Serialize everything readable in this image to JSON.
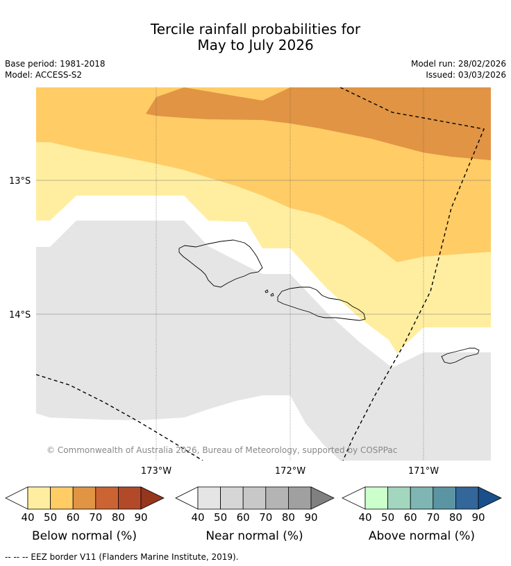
{
  "header": {
    "title_line1": "Tercile rainfall probabilities for",
    "title_line2": "May to July 2026",
    "base_period": "Base period: 1981-2018",
    "model": "Model: ACCESS-S2",
    "model_run": "Model run: 28/02/2026",
    "issued": "Issued: 03/03/2026"
  },
  "map": {
    "lat_labels": [
      "13°S",
      "14°S"
    ],
    "lon_labels": [
      "173°W",
      "172°W",
      "171°W"
    ],
    "copyright": "© Commonwealth of Australia 2026, Bureau of Meteorology, supported by COSPPac"
  },
  "colorbars": [
    {
      "label": "Below normal (%)",
      "ticks": [
        "40",
        "50",
        "60",
        "70",
        "80",
        "90"
      ],
      "colors": [
        "#ffffff",
        "#ffeea0",
        "#ffcc66",
        "#e09444",
        "#cc6333",
        "#b24a2a",
        "#96361d"
      ]
    },
    {
      "label": "Near normal (%)",
      "ticks": [
        "40",
        "50",
        "60",
        "70",
        "80",
        "90"
      ],
      "colors": [
        "#ffffff",
        "#e5e5e5",
        "#d6d6d6",
        "#c8c8c8",
        "#b4b4b4",
        "#a0a0a0",
        "#808080"
      ]
    },
    {
      "label": "Above normal (%)",
      "ticks": [
        "40",
        "50",
        "60",
        "70",
        "80",
        "90"
      ],
      "colors": [
        "#ffffff",
        "#ccffcc",
        "#a3d6be",
        "#7fb5b2",
        "#5b94a3",
        "#336699",
        "#1a4f8a"
      ]
    }
  ],
  "legend": {
    "eez_note": "--  --  -- EEZ border V11 (Flanders Marine Institute, 2019)."
  }
}
